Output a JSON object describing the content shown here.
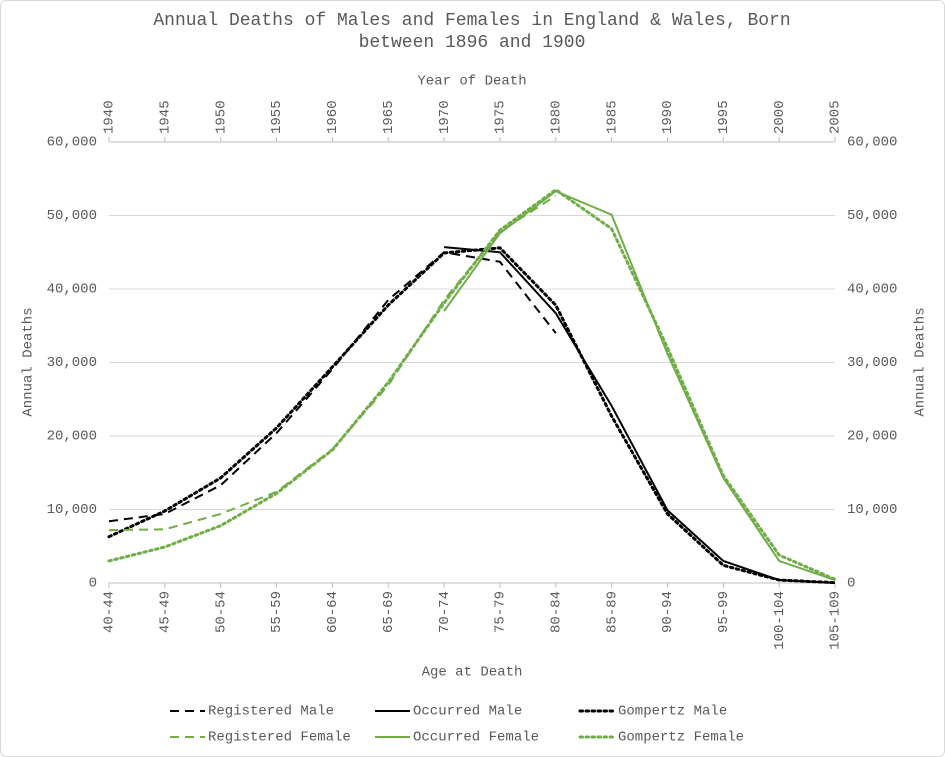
{
  "chart_data": {
    "type": "line",
    "title": "Annual Deaths of Males and Females in England & Wales, Born between 1896 and 1900",
    "xlabel": "Age at Death",
    "ylabel": "Annual Deaths",
    "y2label": "Annual Deaths",
    "x2label": "Year of Death",
    "categories": [
      "40-44",
      "45-49",
      "50-54",
      "55-59",
      "60-64",
      "65-69",
      "70-74",
      "75-79",
      "80-84",
      "85-89",
      "90-94",
      "95-99",
      "100-104",
      "105-109"
    ],
    "x2lim": [
      1940,
      2005
    ],
    "x2ticks": [
      1940,
      1945,
      1950,
      1955,
      1960,
      1965,
      1970,
      1975,
      1980,
      1985,
      1990,
      1995,
      2000,
      2005
    ],
    "ylim": [
      0,
      60000
    ],
    "yticks": [
      0,
      {
        "value": 10000,
        "label": "10,000"
      },
      {
        "value": 20000,
        "label": "20,000"
      },
      {
        "value": 30000,
        "label": "30,000"
      },
      {
        "value": 40000,
        "label": "40,000"
      },
      {
        "value": 50000,
        "label": "50,000"
      },
      {
        "value": 60000,
        "label": "60,000"
      }
    ],
    "y2lim": [
      0,
      60000
    ],
    "y2ticks": [
      0,
      {
        "value": 10000,
        "label": "10,000"
      },
      {
        "value": 20000,
        "label": "20,000"
      },
      {
        "value": 30000,
        "label": "30,000"
      },
      {
        "value": 40000,
        "label": "40,000"
      },
      {
        "value": 50000,
        "label": "50,000"
      },
      {
        "value": 60000,
        "label": "60,000"
      }
    ],
    "grid": true,
    "legend": "bottom",
    "series": [
      {
        "name": "Registered Male",
        "color": "#000000",
        "dash": "dashed",
        "values": [
          8400,
          9400,
          13300,
          20400,
          29100,
          38500,
          45000,
          43700,
          34000,
          null,
          null,
          null,
          null,
          null
        ]
      },
      {
        "name": "Occurred Male",
        "color": "#000000",
        "dash": "solid",
        "values": [
          null,
          null,
          null,
          null,
          null,
          null,
          45700,
          45000,
          36700,
          24100,
          9900,
          3000,
          400,
          0
        ]
      },
      {
        "name": "Gompertz Male",
        "color": "#000000",
        "dash": "dotted",
        "values": [
          6300,
          9800,
          14300,
          21100,
          29400,
          37800,
          44900,
          45600,
          37800,
          22700,
          9400,
          2400,
          400,
          50
        ]
      },
      {
        "name": "Registered Female",
        "color": "#70ad47",
        "dash": "dashed",
        "values": [
          7200,
          7300,
          9400,
          12400,
          18200,
          26900,
          38500,
          47800,
          52700,
          null,
          null,
          null,
          null,
          null
        ]
      },
      {
        "name": "Occurred Female",
        "color": "#70ad47",
        "dash": "solid",
        "values": [
          null,
          null,
          null,
          null,
          null,
          null,
          37000,
          47600,
          53300,
          50100,
          31200,
          14300,
          3000,
          400
        ]
      },
      {
        "name": "Gompertz Female",
        "color": "#70ad47",
        "dash": "dotted",
        "values": [
          3000,
          4900,
          7800,
          12200,
          18100,
          27300,
          38100,
          48000,
          53500,
          48200,
          32000,
          14600,
          3800,
          500
        ]
      }
    ]
  }
}
